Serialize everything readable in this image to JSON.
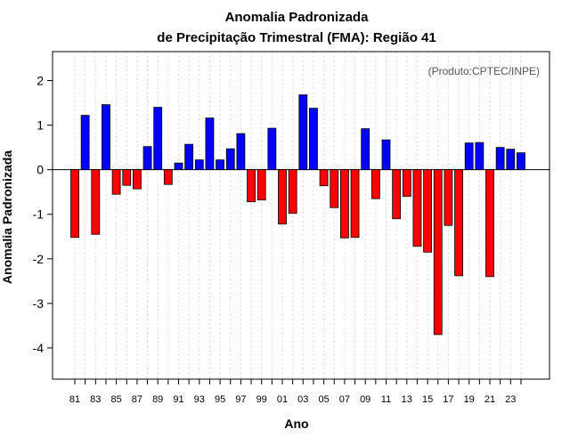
{
  "chart_data": {
    "type": "bar",
    "title": "Anomalia Padronizada",
    "subtitle": "de Precipitação Trimestral (FMA): Região 41",
    "xlabel": "Ano",
    "ylabel": "Anomalia Padronizada",
    "credit": "(Produto:CPTEC/INPE)",
    "ylim": [
      -4.7,
      2.65
    ],
    "yticks": [
      2,
      1,
      0,
      -1,
      -2,
      -3,
      -4
    ],
    "ytick_labels": [
      "2",
      "1",
      "0",
      "-1",
      "-2",
      "-3",
      "-4"
    ],
    "grid": "vertical dotted",
    "categories": [
      "1981",
      "1982",
      "1983",
      "1984",
      "1985",
      "1986",
      "1987",
      "1988",
      "1989",
      "1990",
      "1991",
      "1992",
      "1993",
      "1994",
      "1995",
      "1996",
      "1997",
      "1998",
      "1999",
      "2000",
      "2001",
      "2002",
      "2003",
      "2004",
      "2005",
      "2006",
      "2007",
      "2008",
      "2009",
      "2010",
      "2011",
      "2012",
      "2013",
      "2014",
      "2015",
      "2016",
      "2017",
      "2018",
      "2019",
      "2020",
      "2021",
      "2022",
      "2023",
      "2024"
    ],
    "tick_labels": [
      "81",
      "83",
      "85",
      "87",
      "89",
      "91",
      "93",
      "95",
      "97",
      "99",
      "01",
      "03",
      "05",
      "07",
      "09",
      "11",
      "13",
      "15",
      "17",
      "19",
      "21",
      "23"
    ],
    "values": [
      -1.52,
      1.22,
      -1.45,
      1.46,
      -0.55,
      -0.35,
      -0.43,
      0.52,
      1.4,
      -0.33,
      0.15,
      0.57,
      0.22,
      1.16,
      0.22,
      0.47,
      0.81,
      -0.72,
      -0.68,
      0.93,
      -1.22,
      -0.98,
      1.68,
      1.38,
      -0.36,
      -0.85,
      -1.53,
      -1.52,
      0.92,
      -0.65,
      0.67,
      -1.1,
      -0.6,
      -1.72,
      -1.85,
      -3.7,
      -1.25,
      -2.38,
      0.6,
      0.61,
      -2.4,
      0.5,
      0.46,
      0.38
    ],
    "colors": {
      "positive": "#0000ff",
      "negative": "#ff0000",
      "outline": "#000000",
      "grid": "#d8d8d8"
    }
  }
}
